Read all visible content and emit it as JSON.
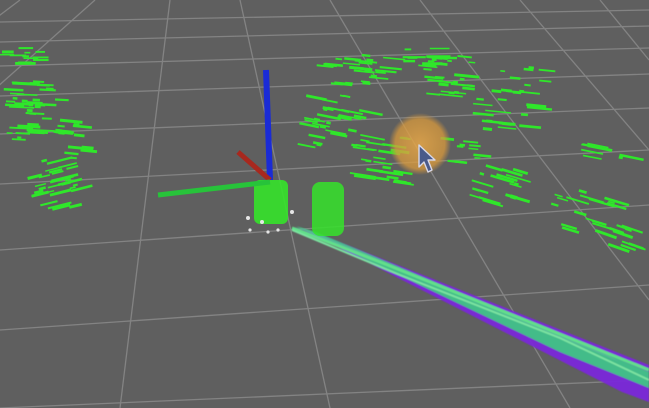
{
  "viewport": {
    "background_color": "#5f5f5f",
    "grid_color": "#8a8a8a"
  },
  "axes": {
    "x_color": "#c0281e",
    "y_color": "#27c33a",
    "z_color": "#1a2bd6"
  },
  "point_cloud": {
    "color": "#2fe72a"
  },
  "paths": {
    "primary_color": "#7a26d9",
    "secondary_color": "#39d67d"
  },
  "cursor": {
    "icon": "arrow-pointer-icon",
    "highlight_color": "#e0a040"
  }
}
